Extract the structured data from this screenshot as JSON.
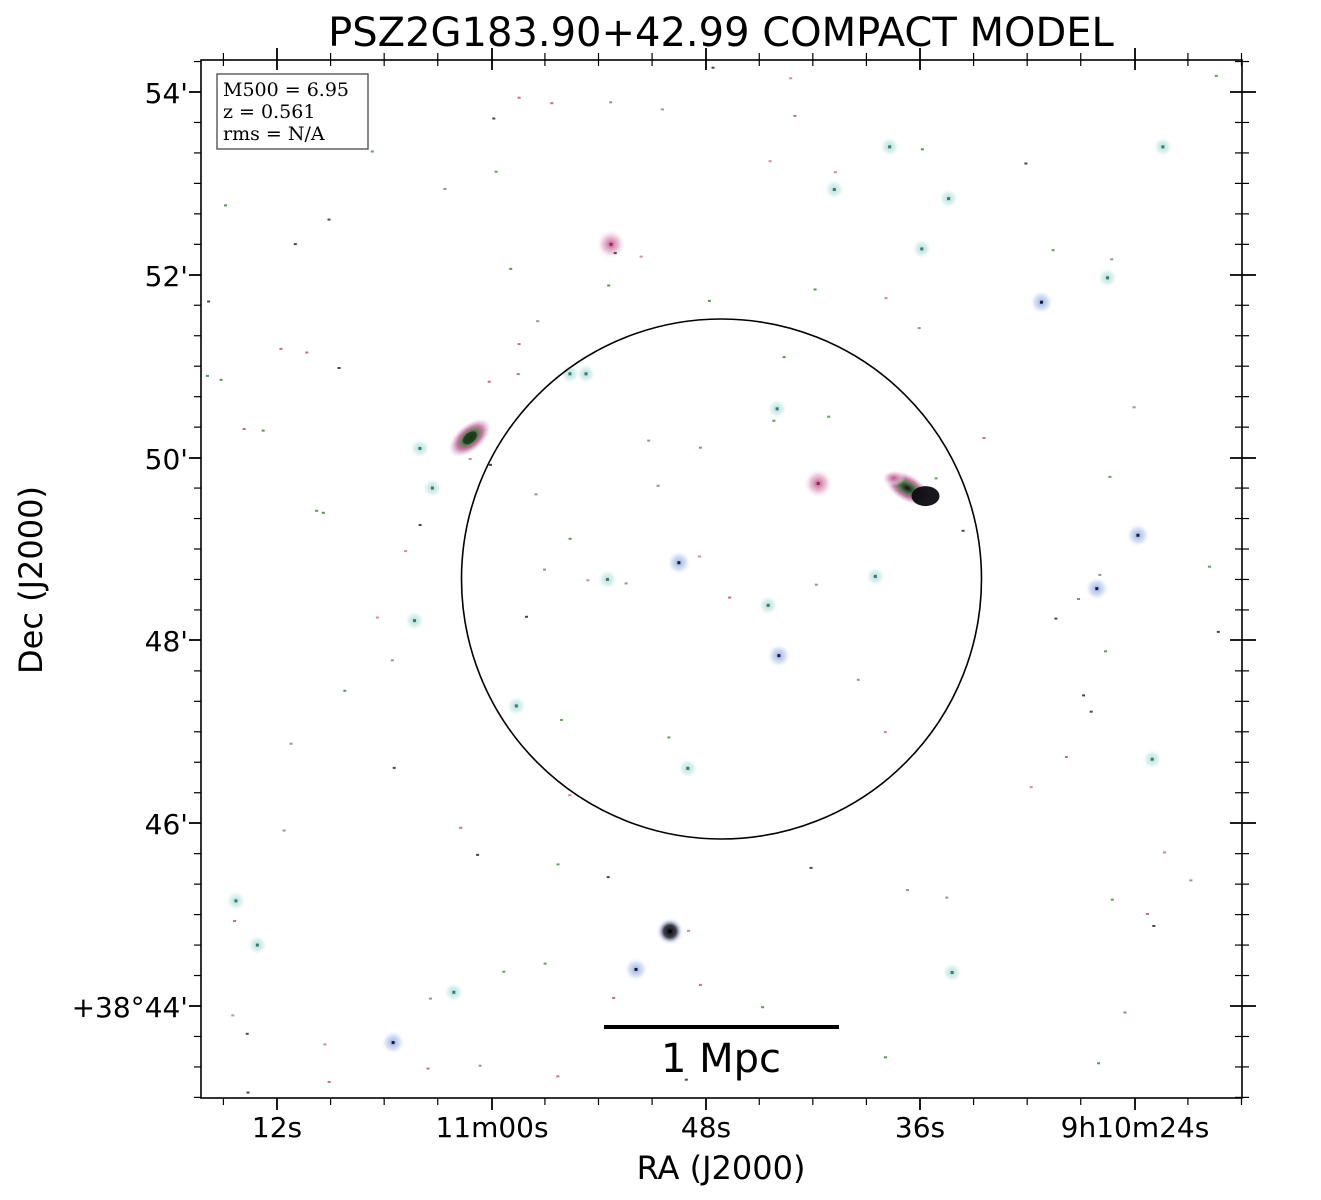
{
  "chart_data": {
    "type": "scatter",
    "title": "PSZ2G183.90+42.99 COMPACT MODEL",
    "xlabel": "RA (J2000)",
    "ylabel": "Dec (J2000)",
    "x_ticks": [
      "12s",
      "11m00s",
      "48s",
      "36s",
      "9h10m24s"
    ],
    "y_ticks": [
      "54'",
      "52'",
      "50'",
      "48'",
      "46'",
      "+38°44'"
    ],
    "info_box": {
      "mass": "M500 = 6.95",
      "redshift": "z = 0.561",
      "rms": "rms = N/A"
    },
    "scale_bar_label": "1 Mpc",
    "aperture": "circle",
    "colors": {
      "halo_cyan": "#bfe6e2",
      "halo_blue": "#aec4ea",
      "halo_pink": "#e7a9c7",
      "core_dark": "#0a0a14",
      "core_green": "#2a7a2a",
      "core_magenta": "#b03a78"
    },
    "sources": [
      {
        "ra": "9:11:01.2",
        "dec": "+38:50:13",
        "kind": "extended-bright"
      },
      {
        "ra": "9:10:36.7",
        "dec": "+38:49:40",
        "kind": "extended-bright"
      },
      {
        "ra": "9:10:50.0",
        "dec": "+38:44:49",
        "kind": "compact-dark"
      },
      {
        "ra": "9:10:53.3",
        "dec": "+38:52:20",
        "kind": "compact-pink"
      },
      {
        "ra": "9:10:41.7",
        "dec": "+38:49:43",
        "kind": "compact-pink"
      },
      {
        "ra": "9:10:43.9",
        "dec": "+38:47:50",
        "kind": "compact-blue"
      },
      {
        "ra": "9:10:26.1",
        "dec": "+38:48:34",
        "kind": "compact-blue"
      },
      {
        "ra": "9:10:23.8",
        "dec": "+38:49:09",
        "kind": "compact-blue"
      },
      {
        "ra": "9:10:29.2",
        "dec": "+38:51:42",
        "kind": "compact-blue"
      },
      {
        "ra": "9:10:51.9",
        "dec": "+38:44:24",
        "kind": "compact-blue"
      },
      {
        "ra": "9:11:05.5",
        "dec": "+38:43:36",
        "kind": "compact-blue"
      },
      {
        "ra": "9:10:49.5",
        "dec": "+38:48:51",
        "kind": "compact-blue"
      },
      {
        "ra": "9:10:53.5",
        "dec": "+38:48:40",
        "kind": "compact-cyan"
      },
      {
        "ra": "9:10:54.7",
        "dec": "+38:50:55",
        "kind": "compact-cyan"
      },
      {
        "ra": "9:11:04.0",
        "dec": "+38:50:06",
        "kind": "compact-cyan"
      },
      {
        "ra": "9:10:35.9",
        "dec": "+38:52:17",
        "kind": "compact-cyan"
      },
      {
        "ra": "9:10:40.8",
        "dec": "+38:52:56",
        "kind": "compact-cyan"
      },
      {
        "ra": "9:10:37.7",
        "dec": "+38:53:24",
        "kind": "compact-cyan"
      },
      {
        "ra": "9:10:34.4",
        "dec": "+38:52:50",
        "kind": "compact-cyan"
      },
      {
        "ra": "9:10:22.4",
        "dec": "+38:53:24",
        "kind": "compact-cyan"
      },
      {
        "ra": "9:10:25.5",
        "dec": "+38:51:58",
        "kind": "compact-cyan"
      },
      {
        "ra": "9:10:38.5",
        "dec": "+38:48:42",
        "kind": "compact-cyan"
      },
      {
        "ra": "9:10:44.5",
        "dec": "+38:48:23",
        "kind": "compact-cyan"
      },
      {
        "ra": "9:11:03.3",
        "dec": "+38:49:40",
        "kind": "compact-cyan"
      },
      {
        "ra": "9:11:04.3",
        "dec": "+38:48:13",
        "kind": "compact-cyan"
      },
      {
        "ra": "9:11:14.3",
        "dec": "+38:45:09",
        "kind": "compact-cyan"
      },
      {
        "ra": "9:11:13.1",
        "dec": "+38:44:40",
        "kind": "compact-cyan"
      },
      {
        "ra": "9:10:49.0",
        "dec": "+38:46:36",
        "kind": "compact-cyan"
      },
      {
        "ra": "9:10:58.6",
        "dec": "+38:47:17",
        "kind": "compact-cyan"
      },
      {
        "ra": "9:10:44.0",
        "dec": "+38:50:32",
        "kind": "compact-cyan"
      },
      {
        "ra": "9:10:55.6",
        "dec": "+38:50:55",
        "kind": "compact-cyan"
      },
      {
        "ra": "9:10:23.0",
        "dec": "+38:46:42",
        "kind": "compact-cyan"
      },
      {
        "ra": "9:10:34.2",
        "dec": "+38:44:22",
        "kind": "compact-cyan"
      },
      {
        "ra": "9:11:02.1",
        "dec": "+38:44:09",
        "kind": "compact-cyan"
      }
    ]
  }
}
